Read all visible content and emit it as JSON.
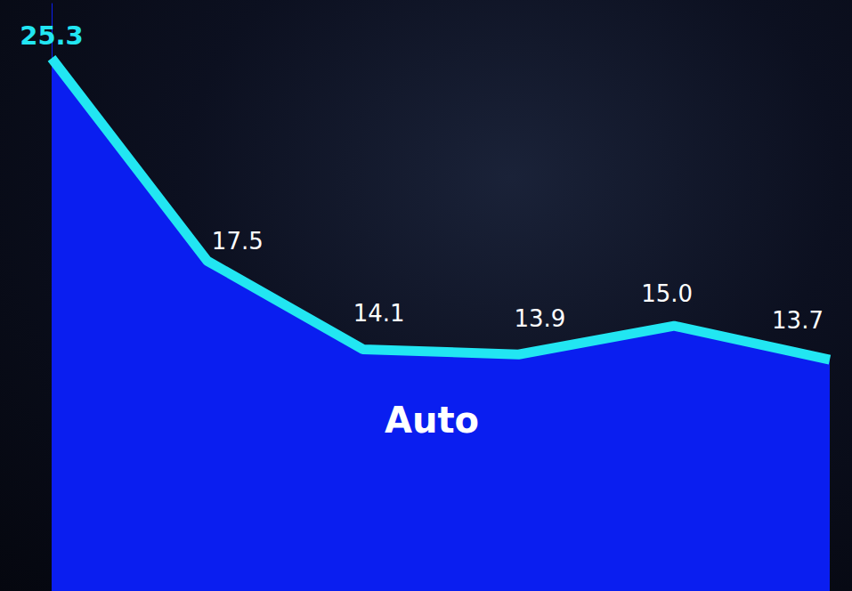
{
  "chart_data": {
    "type": "area",
    "annotation": "Auto",
    "categories": [
      null,
      null,
      null,
      null,
      null,
      null
    ],
    "values": [
      25.3,
      17.5,
      14.1,
      13.9,
      15.0,
      13.7
    ],
    "value_labels": [
      "25.3",
      "17.5",
      "14.1",
      "13.9",
      "15.0",
      "13.7"
    ],
    "color": "#0a1ef0",
    "ylim": [
      4.8,
      27.4
    ],
    "data_labels": true,
    "tick_labels": false,
    "grid": false
  }
}
